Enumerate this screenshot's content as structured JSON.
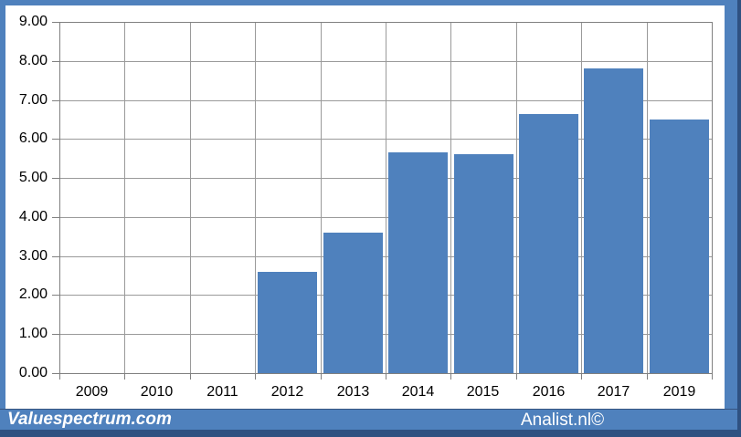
{
  "chart_data": {
    "type": "bar",
    "categories": [
      "2009",
      "2010",
      "2011",
      "2012",
      "2013",
      "2014",
      "2015",
      "2016",
      "2017",
      "2019"
    ],
    "values": [
      null,
      null,
      null,
      2.6,
      3.6,
      5.65,
      5.6,
      6.65,
      7.8,
      6.5
    ],
    "title": "",
    "xlabel": "",
    "ylabel": "",
    "ylim": [
      0,
      9
    ],
    "ytick_step": 1,
    "yticks": [
      "0.00",
      "1.00",
      "2.00",
      "3.00",
      "4.00",
      "5.00",
      "6.00",
      "7.00",
      "8.00",
      "9.00"
    ],
    "grid": true,
    "legend": false,
    "colors": {
      "bar": "#4f81bd",
      "gridline": "#9a9a9a",
      "axis": "#808080",
      "tick": "#808080",
      "label_text": "#000000",
      "plot_background": "#ffffff"
    }
  },
  "frame": {
    "border_color": "#4f81bd",
    "shadow_color": "#2f5181",
    "separator_color": "#35547f",
    "surface_background": "#ffffff"
  },
  "footer": {
    "left_text": "Valuespectrum.com",
    "right_text": "Analist.nl©",
    "background": "#4f81bd",
    "text_color": "#ffffff"
  }
}
